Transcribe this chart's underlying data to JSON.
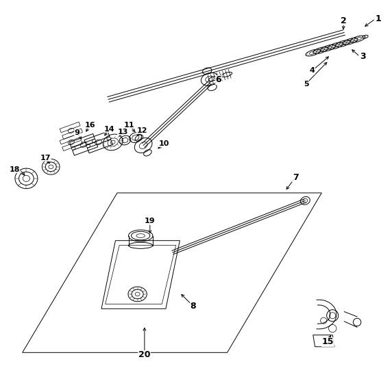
{
  "background_color": "#ffffff",
  "fig_width": 5.72,
  "fig_height": 5.73,
  "dpi": 100,
  "leaders": {
    "1": {
      "lpos": [
        0.96,
        0.955
      ],
      "apos": [
        0.928,
        0.932
      ]
    },
    "2": {
      "lpos": [
        0.878,
        0.95
      ],
      "apos": [
        0.878,
        0.922
      ]
    },
    "3": {
      "lpos": [
        0.92,
        0.858
      ],
      "apos": [
        0.895,
        0.88
      ]
    },
    "4": {
      "lpos": [
        0.798,
        0.822
      ],
      "apos": [
        0.845,
        0.862
      ]
    },
    "5": {
      "lpos": [
        0.782,
        0.788
      ],
      "apos": [
        0.84,
        0.848
      ]
    },
    "6": {
      "lpos": [
        0.558,
        0.798
      ],
      "apos": [
        0.562,
        0.808
      ]
    },
    "7": {
      "lpos": [
        0.755,
        0.548
      ],
      "apos": [
        0.728,
        0.512
      ]
    },
    "8": {
      "lpos": [
        0.492,
        0.218
      ],
      "apos": [
        0.458,
        0.252
      ]
    },
    "9": {
      "lpos": [
        0.195,
        0.662
      ],
      "apos": [
        0.21,
        0.64
      ]
    },
    "10": {
      "lpos": [
        0.418,
        0.635
      ],
      "apos": [
        0.398,
        0.618
      ]
    },
    "11": {
      "lpos": [
        0.328,
        0.682
      ],
      "apos": [
        0.348,
        0.66
      ]
    },
    "12": {
      "lpos": [
        0.362,
        0.668
      ],
      "apos": [
        0.345,
        0.652
      ]
    },
    "13": {
      "lpos": [
        0.312,
        0.665
      ],
      "apos": [
        0.3,
        0.648
      ]
    },
    "14": {
      "lpos": [
        0.278,
        0.672
      ],
      "apos": [
        0.262,
        0.65
      ]
    },
    "15": {
      "lpos": [
        0.838,
        0.125
      ],
      "apos": [
        0.848,
        0.148
      ]
    },
    "16": {
      "lpos": [
        0.228,
        0.682
      ],
      "apos": [
        0.215,
        0.66
      ]
    },
    "17": {
      "lpos": [
        0.115,
        0.598
      ],
      "apos": [
        0.128,
        0.578
      ]
    },
    "18": {
      "lpos": [
        0.048,
        0.568
      ],
      "apos": [
        0.065,
        0.548
      ]
    },
    "19": {
      "lpos": [
        0.382,
        0.435
      ],
      "apos": [
        0.382,
        0.398
      ]
    },
    "20": {
      "lpos": [
        0.368,
        0.092
      ],
      "apos": [
        0.368,
        0.168
      ]
    }
  }
}
